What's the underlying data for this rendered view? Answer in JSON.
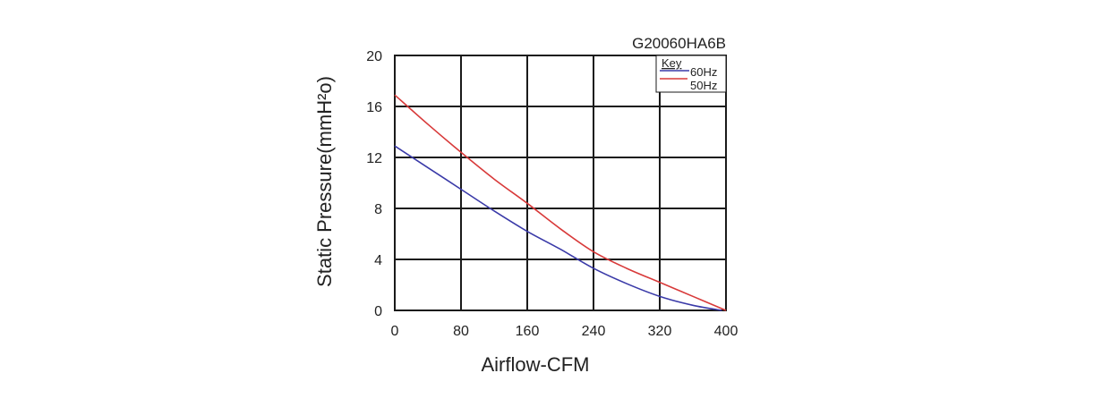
{
  "chart_data": {
    "type": "line",
    "title": "G20060HA6B",
    "xlabel": "Airflow-CFM",
    "ylabel": "Static Pressure(mmH²o)",
    "xlim": [
      0,
      400
    ],
    "ylim": [
      0,
      20
    ],
    "x_ticks": [
      "0",
      "80",
      "160",
      "240",
      "320",
      "400"
    ],
    "y_ticks": [
      "0",
      "4",
      "8",
      "12",
      "16",
      "20"
    ],
    "grid": true,
    "legend": {
      "title": "Key",
      "placement": "top-right",
      "entries": [
        "60Hz",
        "50Hz"
      ]
    },
    "series": [
      {
        "name": "60Hz",
        "color": "#3a3aa8",
        "points": [
          [
            0,
            12.9
          ],
          [
            40,
            11.2
          ],
          [
            80,
            9.5
          ],
          [
            120,
            7.8
          ],
          [
            160,
            6.2
          ],
          [
            200,
            4.8
          ],
          [
            240,
            3.3
          ],
          [
            280,
            2.1
          ],
          [
            320,
            1.1
          ],
          [
            360,
            0.4
          ],
          [
            395,
            0
          ]
        ]
      },
      {
        "name": "50Hz",
        "color": "#d83a3a",
        "points": [
          [
            0,
            16.9
          ],
          [
            40,
            14.6
          ],
          [
            80,
            12.4
          ],
          [
            120,
            10.3
          ],
          [
            160,
            8.4
          ],
          [
            200,
            6.4
          ],
          [
            240,
            4.6
          ],
          [
            280,
            3.3
          ],
          [
            320,
            2.2
          ],
          [
            360,
            1.1
          ],
          [
            400,
            0
          ]
        ]
      }
    ]
  }
}
